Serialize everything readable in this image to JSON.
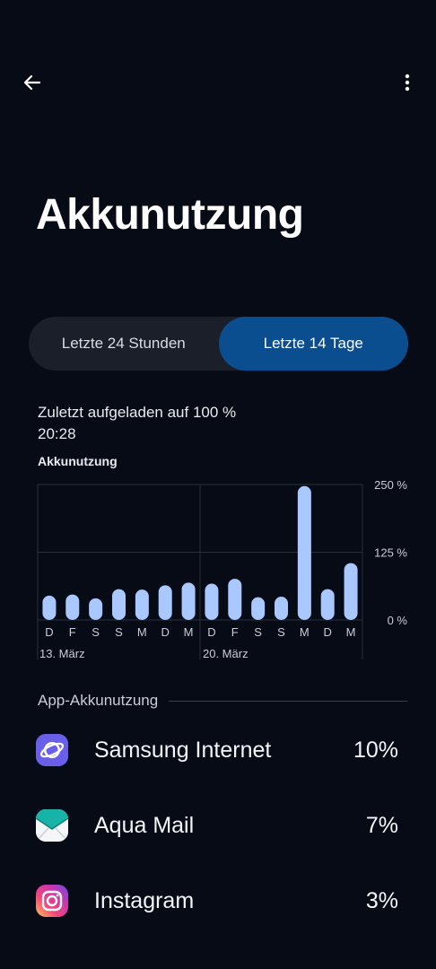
{
  "header": {
    "back_icon": "arrow-left-icon",
    "more_icon": "more-vertical-icon",
    "title": "Akkunutzung"
  },
  "tabs": [
    {
      "label": "Letzte 24 Stunden",
      "active": false
    },
    {
      "label": "Letzte 14 Tage",
      "active": true
    }
  ],
  "last_charged": {
    "line1": "Zuletzt aufgeladen auf 100 %",
    "line2": "20:28"
  },
  "chart_data": {
    "type": "bar",
    "title": "Akkunutzung",
    "categories": [
      "D",
      "F",
      "S",
      "S",
      "M",
      "D",
      "M",
      "D",
      "F",
      "S",
      "S",
      "M",
      "D",
      "M"
    ],
    "values": [
      45,
      47,
      40,
      57,
      56,
      64,
      69,
      67,
      76,
      42,
      43,
      247,
      57,
      105
    ],
    "ylim": [
      0,
      250
    ],
    "yticks": [
      "250 %",
      "125 %",
      "0 %"
    ],
    "date_labels": [
      "13. März",
      "20. März"
    ],
    "bar_color": "#a9c8ff",
    "grid": true
  },
  "apps_section": {
    "title": "App-Akkunutzung",
    "apps": [
      {
        "name": "Samsung Internet",
        "percent": "10%",
        "icon": "samsung-internet-icon"
      },
      {
        "name": "Aqua Mail",
        "percent": "7%",
        "icon": "aqua-mail-icon"
      },
      {
        "name": "Instagram",
        "percent": "3%",
        "icon": "instagram-icon"
      }
    ]
  }
}
